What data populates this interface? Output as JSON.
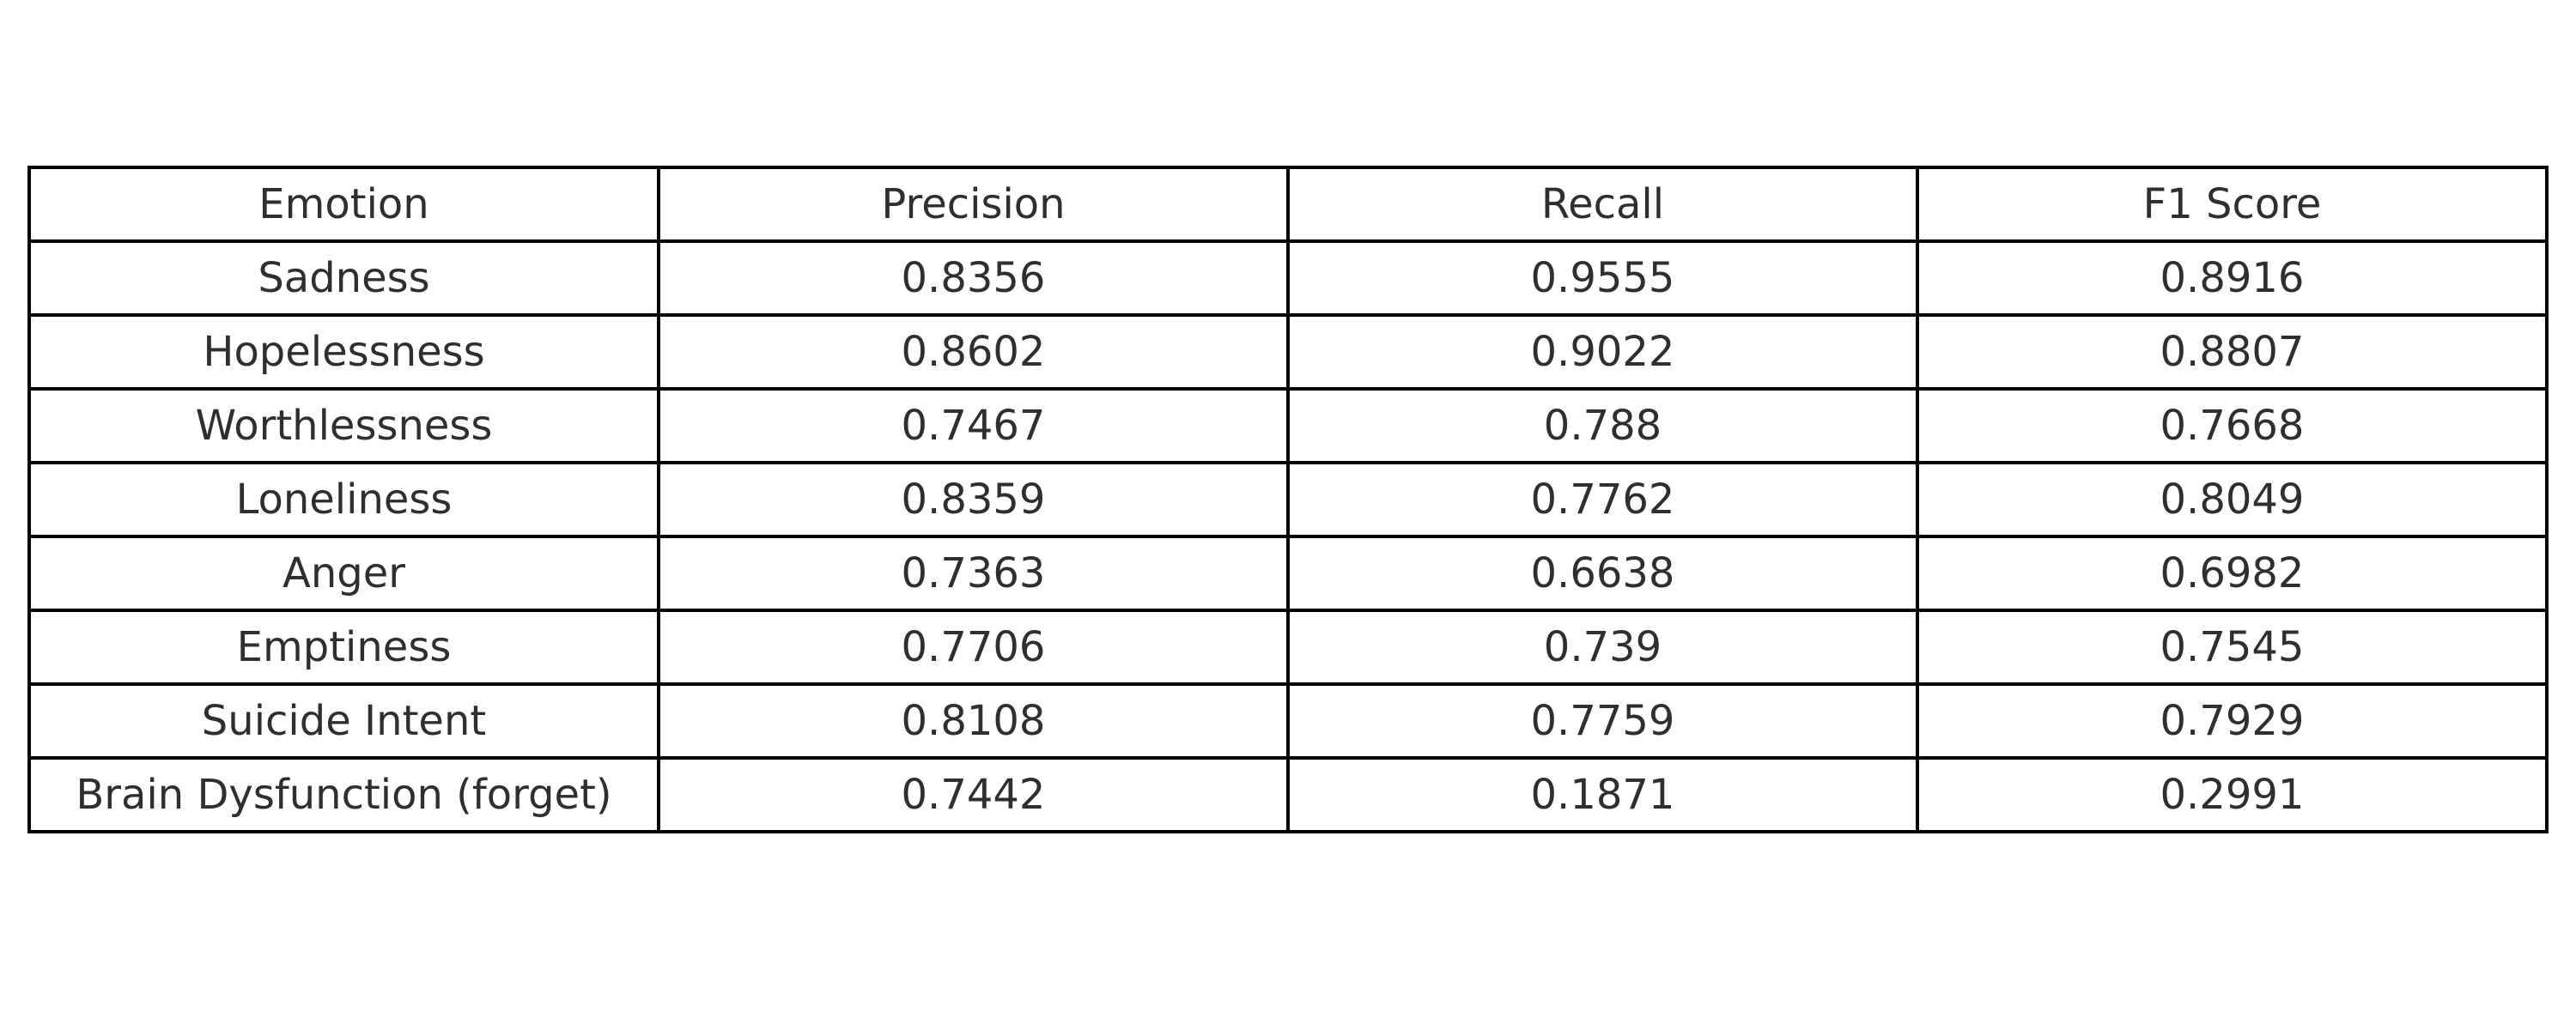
{
  "chart_data": {
    "type": "table",
    "columns": [
      "Emotion",
      "Precision",
      "Recall",
      "F1 Score"
    ],
    "rows": [
      [
        "Sadness",
        "0.8356",
        "0.9555",
        "0.8916"
      ],
      [
        "Hopelessness",
        "0.8602",
        "0.9022",
        "0.8807"
      ],
      [
        "Worthlessness",
        "0.7467",
        "0.788",
        "0.7668"
      ],
      [
        "Loneliness",
        "0.8359",
        "0.7762",
        "0.8049"
      ],
      [
        "Anger",
        "0.7363",
        "0.6638",
        "0.6982"
      ],
      [
        "Emptiness",
        "0.7706",
        "0.739",
        "0.7545"
      ],
      [
        "Suicide Intent",
        "0.8108",
        "0.7759",
        "0.7929"
      ],
      [
        "Brain Dysfunction (forget)",
        "0.7442",
        "0.1871",
        "0.2991"
      ]
    ],
    "colors": {
      "border": "#000000",
      "text": "#2f2f2f",
      "background": "#ffffff"
    }
  }
}
